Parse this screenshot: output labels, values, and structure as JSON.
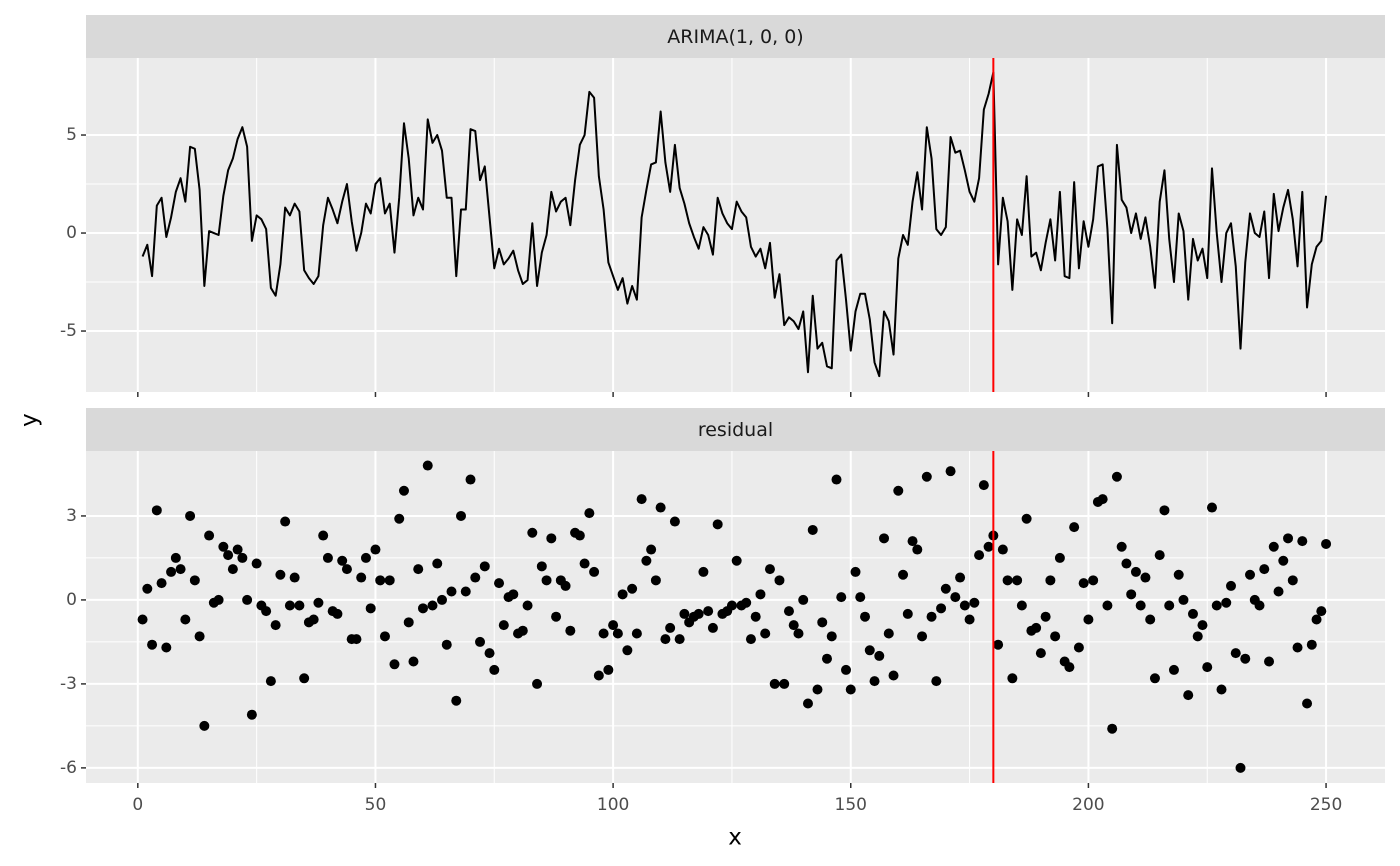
{
  "chart_data": [
    {
      "type": "line",
      "title": "ARIMA(1, 0, 0)",
      "y_label": "y",
      "color": "#000000",
      "x": [
        1,
        2,
        3,
        4,
        5,
        6,
        7,
        8,
        9,
        10,
        11,
        12,
        13,
        14,
        15,
        16,
        17,
        18,
        19,
        20,
        21,
        22,
        23,
        24,
        25,
        26,
        27,
        28,
        29,
        30,
        31,
        32,
        33,
        34,
        35,
        36,
        37,
        38,
        39,
        40,
        41,
        42,
        43,
        44,
        45,
        46,
        47,
        48,
        49,
        50,
        51,
        52,
        53,
        54,
        55,
        56,
        57,
        58,
        59,
        60,
        61,
        62,
        63,
        64,
        65,
        66,
        67,
        68,
        69,
        70,
        71,
        72,
        73,
        74,
        75,
        76,
        77,
        78,
        79,
        80,
        81,
        82,
        83,
        84,
        85,
        86,
        87,
        88,
        89,
        90,
        91,
        92,
        93,
        94,
        95,
        96,
        97,
        98,
        99,
        100,
        101,
        102,
        103,
        104,
        105,
        106,
        107,
        108,
        109,
        110,
        111,
        112,
        113,
        114,
        115,
        116,
        117,
        118,
        119,
        120,
        121,
        122,
        123,
        124,
        125,
        126,
        127,
        128,
        129,
        130,
        131,
        132,
        133,
        134,
        135,
        136,
        137,
        138,
        139,
        140,
        141,
        142,
        143,
        144,
        145,
        146,
        147,
        148,
        149,
        150,
        151,
        152,
        153,
        154,
        155,
        156,
        157,
        158,
        159,
        160,
        161,
        162,
        163,
        164,
        165,
        166,
        167,
        168,
        169,
        170,
        171,
        172,
        173,
        174,
        175,
        176,
        177,
        178,
        179,
        180,
        181,
        182,
        183,
        184,
        185,
        186,
        187,
        188,
        189,
        190,
        191,
        192,
        193,
        194,
        195,
        196,
        197,
        198,
        199,
        200,
        201,
        202,
        203,
        204,
        205,
        206,
        207,
        208,
        209,
        210,
        211,
        212,
        213,
        214,
        215,
        216,
        217,
        218,
        219,
        220,
        221,
        222,
        223,
        224,
        225,
        226,
        227,
        228,
        229,
        230,
        231,
        232,
        233,
        234,
        235,
        236,
        237,
        238,
        239,
        240,
        241,
        242,
        243,
        244,
        245,
        246,
        247,
        248,
        249,
        250
      ],
      "values": [
        -1.2,
        -0.6,
        -2.2,
        1.4,
        1.8,
        -0.2,
        0.8,
        2.1,
        2.8,
        1.6,
        4.4,
        4.3,
        2.2,
        -2.7,
        0.1,
        0.0,
        -0.1,
        1.9,
        3.2,
        3.8,
        4.8,
        5.4,
        4.4,
        -0.4,
        0.9,
        0.7,
        0.2,
        -2.8,
        -3.2,
        -1.6,
        1.3,
        0.9,
        1.5,
        1.1,
        -1.9,
        -2.3,
        -2.6,
        -2.2,
        0.4,
        1.8,
        1.2,
        0.5,
        1.6,
        2.5,
        0.6,
        -0.9,
        0.0,
        1.5,
        1.0,
        2.5,
        2.8,
        1.0,
        1.5,
        -1.0,
        1.8,
        5.6,
        3.8,
        0.9,
        1.8,
        1.2,
        5.8,
        4.6,
        5.0,
        4.2,
        1.8,
        1.8,
        -2.2,
        1.2,
        1.2,
        5.3,
        5.2,
        2.7,
        3.4,
        0.8,
        -1.8,
        -0.8,
        -1.6,
        -1.3,
        -0.9,
        -1.9,
        -2.6,
        -2.4,
        0.5,
        -2.7,
        -1.0,
        -0.1,
        2.1,
        1.1,
        1.6,
        1.8,
        0.4,
        2.7,
        4.5,
        5.0,
        7.2,
        6.9,
        2.9,
        1.2,
        -1.5,
        -2.2,
        -2.9,
        -2.3,
        -3.6,
        -2.7,
        -3.4,
        0.8,
        2.2,
        3.5,
        3.6,
        6.2,
        3.6,
        2.1,
        4.5,
        2.3,
        1.5,
        0.5,
        -0.2,
        -0.8,
        0.3,
        -0.1,
        -1.1,
        1.8,
        1.0,
        0.5,
        0.2,
        1.6,
        1.1,
        0.8,
        -0.7,
        -1.2,
        -0.8,
        -1.8,
        -0.5,
        -3.3,
        -2.1,
        -4.7,
        -4.3,
        -4.5,
        -4.9,
        -4.0,
        -7.1,
        -3.2,
        -5.9,
        -5.6,
        -6.8,
        -6.9,
        -1.4,
        -1.1,
        -3.4,
        -6.0,
        -4.0,
        -3.1,
        -3.1,
        -4.4,
        -6.6,
        -7.3,
        -4.0,
        -4.5,
        -6.2,
        -1.3,
        -0.1,
        -0.6,
        1.6,
        3.1,
        1.2,
        5.4,
        3.8,
        0.2,
        -0.1,
        0.3,
        4.9,
        4.1,
        4.2,
        3.2,
        2.1,
        1.6,
        2.8,
        6.3,
        7.1,
        8.2,
        -1.6,
        1.8,
        0.6,
        -2.9,
        0.7,
        -0.1,
        2.9,
        -1.2,
        -1.0,
        -1.9,
        -0.5,
        0.7,
        -1.4,
        2.1,
        -2.2,
        -2.3,
        2.6,
        -1.8,
        0.6,
        -0.7,
        0.7,
        3.4,
        3.5,
        0.2,
        -4.6,
        4.5,
        1.7,
        1.3,
        0.0,
        1.0,
        -0.3,
        0.8,
        -0.7,
        -2.8,
        1.6,
        3.2,
        -0.3,
        -2.5,
        1.0,
        0.1,
        -3.4,
        -0.3,
        -1.4,
        -0.8,
        -2.3,
        3.3,
        0.0,
        -2.5,
        0.0,
        0.5,
        -1.7,
        -5.9,
        -1.5,
        1.0,
        0.0,
        -0.2,
        1.1,
        -2.3,
        2.0,
        0.1,
        1.3,
        2.2,
        0.7,
        -1.7,
        2.1,
        -3.8,
        -1.6,
        -0.7,
        -0.4,
        1.9
      ],
      "vline": 180,
      "vline_color": "#FF0000",
      "xlim": [
        -10.9,
        262.4
      ],
      "xticks": [
        0,
        50,
        100,
        150,
        200,
        250
      ],
      "ylim": [
        -8.11,
        8.93
      ],
      "yticks": [
        -5,
        0,
        5
      ],
      "grid": true
    },
    {
      "type": "scatter",
      "title": "residual",
      "x_label": "x",
      "color": "#000000",
      "x": [
        1,
        2,
        3,
        4,
        5,
        6,
        7,
        8,
        9,
        10,
        11,
        12,
        13,
        14,
        15,
        16,
        17,
        18,
        19,
        20,
        21,
        22,
        23,
        24,
        25,
        26,
        27,
        28,
        29,
        30,
        31,
        32,
        33,
        34,
        35,
        36,
        37,
        38,
        39,
        40,
        41,
        42,
        43,
        44,
        45,
        46,
        47,
        48,
        49,
        50,
        51,
        52,
        53,
        54,
        55,
        56,
        57,
        58,
        59,
        60,
        61,
        62,
        63,
        64,
        65,
        66,
        67,
        68,
        69,
        70,
        71,
        72,
        73,
        74,
        75,
        76,
        77,
        78,
        79,
        80,
        81,
        82,
        83,
        84,
        85,
        86,
        87,
        88,
        89,
        90,
        91,
        92,
        93,
        94,
        95,
        96,
        97,
        98,
        99,
        100,
        101,
        102,
        103,
        104,
        105,
        106,
        107,
        108,
        109,
        110,
        111,
        112,
        113,
        114,
        115,
        116,
        117,
        118,
        119,
        120,
        121,
        122,
        123,
        124,
        125,
        126,
        127,
        128,
        129,
        130,
        131,
        132,
        133,
        134,
        135,
        136,
        137,
        138,
        139,
        140,
        141,
        142,
        143,
        144,
        145,
        146,
        147,
        148,
        149,
        150,
        151,
        152,
        153,
        154,
        155,
        156,
        157,
        158,
        159,
        160,
        161,
        162,
        163,
        164,
        165,
        166,
        167,
        168,
        169,
        170,
        171,
        172,
        173,
        174,
        175,
        176,
        177,
        178,
        179,
        180,
        181,
        182,
        183,
        184,
        185,
        186,
        187,
        188,
        189,
        190,
        191,
        192,
        193,
        194,
        195,
        196,
        197,
        198,
        199,
        200,
        201,
        202,
        203,
        204,
        205,
        206,
        207,
        208,
        209,
        210,
        211,
        212,
        213,
        214,
        215,
        216,
        217,
        218,
        219,
        220,
        221,
        222,
        223,
        224,
        225,
        226,
        227,
        228,
        229,
        230,
        231,
        232,
        233,
        234,
        235,
        236,
        237,
        238,
        239,
        240,
        241,
        242,
        243,
        244,
        245,
        246,
        247,
        248,
        249,
        250
      ],
      "values": [
        -0.7,
        0.4,
        -1.6,
        3.2,
        0.6,
        -1.7,
        1.0,
        1.5,
        1.1,
        -0.7,
        3.0,
        0.7,
        -1.3,
        -4.5,
        2.3,
        -0.1,
        0.0,
        1.9,
        1.6,
        1.1,
        1.8,
        1.5,
        0.0,
        -4.1,
        1.3,
        -0.2,
        -0.4,
        -2.9,
        -0.9,
        0.9,
        2.8,
        -0.2,
        0.8,
        -0.2,
        -2.8,
        -0.8,
        -0.7,
        -0.1,
        2.3,
        1.5,
        -0.4,
        -0.5,
        1.4,
        1.1,
        -1.4,
        -1.4,
        0.8,
        1.5,
        -0.3,
        1.8,
        0.7,
        -1.3,
        0.7,
        -2.3,
        2.9,
        3.9,
        -0.8,
        -2.2,
        1.1,
        -0.3,
        4.8,
        -0.2,
        1.3,
        0.0,
        -1.6,
        0.3,
        -3.6,
        3.0,
        0.3,
        4.3,
        0.8,
        -1.5,
        1.2,
        -1.9,
        -2.5,
        0.6,
        -0.9,
        0.1,
        0.2,
        -1.2,
        -1.1,
        -0.2,
        2.4,
        -3.0,
        1.2,
        0.7,
        2.2,
        -0.6,
        0.7,
        0.5,
        -1.1,
        2.4,
        2.3,
        1.3,
        3.1,
        1.0,
        -2.7,
        -1.2,
        -2.5,
        -0.9,
        -1.2,
        0.2,
        -1.8,
        0.4,
        -1.2,
        3.6,
        1.4,
        1.8,
        0.7,
        3.3,
        -1.4,
        -1.0,
        2.8,
        -1.4,
        -0.5,
        -0.8,
        -0.6,
        -0.5,
        1.0,
        -0.4,
        -1.0,
        2.7,
        -0.5,
        -0.4,
        -0.2,
        1.4,
        -0.2,
        -0.1,
        -1.4,
        -0.6,
        0.2,
        -1.2,
        1.1,
        -3.0,
        0.7,
        -3.0,
        -0.4,
        -0.9,
        -1.2,
        0.0,
        -3.7,
        2.5,
        -3.2,
        -0.8,
        -2.1,
        -1.3,
        4.3,
        0.1,
        -2.5,
        -3.2,
        1.0,
        0.1,
        -0.6,
        -1.8,
        -2.9,
        -2.0,
        2.2,
        -1.2,
        -2.7,
        3.9,
        0.9,
        -0.5,
        2.1,
        1.8,
        -1.3,
        4.4,
        -0.6,
        -2.9,
        -0.3,
        0.4,
        4.6,
        0.1,
        0.8,
        -0.2,
        -0.7,
        -0.1,
        1.6,
        4.1,
        1.9,
        2.3,
        -1.6,
        1.8,
        0.7,
        -2.8,
        0.7,
        -0.2,
        2.9,
        -1.1,
        -1.0,
        -1.9,
        -0.6,
        0.7,
        -1.3,
        1.5,
        -2.2,
        -2.4,
        2.6,
        -1.7,
        0.6,
        -0.7,
        0.7,
        3.5,
        3.6,
        -0.2,
        -4.6,
        4.4,
        1.9,
        1.3,
        0.2,
        1.0,
        -0.2,
        0.8,
        -0.7,
        -2.8,
        1.6,
        3.2,
        -0.2,
        -2.5,
        0.9,
        0.0,
        -3.4,
        -0.5,
        -1.3,
        -0.9,
        -2.4,
        3.3,
        -0.2,
        -3.2,
        -0.1,
        0.5,
        -1.9,
        -6.0,
        -2.1,
        0.9,
        0.0,
        -0.2,
        1.1,
        -2.2,
        1.9,
        0.3,
        1.4,
        2.2,
        0.7,
        -1.7,
        2.1,
        -3.7,
        -1.6,
        -0.7,
        -0.4,
        2.0
      ],
      "vline": 180,
      "vline_color": "#FF0000",
      "xlim": [
        -10.9,
        262.4
      ],
      "xticks": [
        0,
        50,
        100,
        150,
        200,
        250
      ],
      "ylim": [
        -6.54,
        5.32
      ],
      "yticks": [
        -6,
        -3,
        0,
        3
      ],
      "grid": true
    }
  ]
}
